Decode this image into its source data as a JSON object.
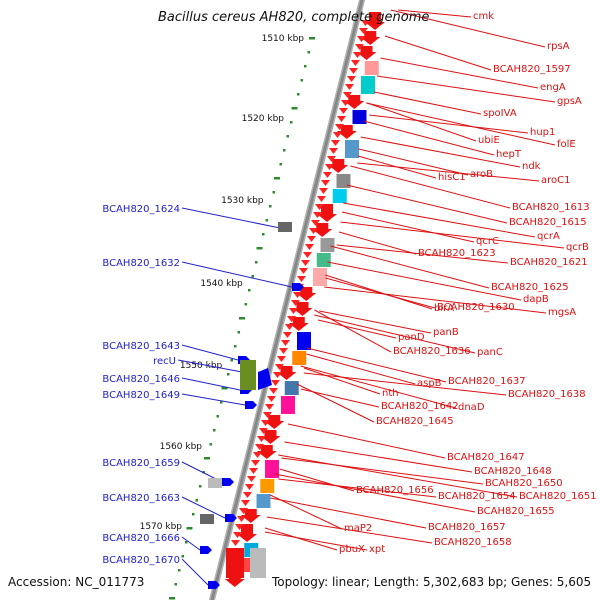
{
  "title": "Bacillus cereus AH820, complete genome",
  "accession": "Accession: NC_011773",
  "topology": "Topology: linear; Length: 5,302,683 bp; Genes: 5,605",
  "colors": {
    "forward_label": "#2222cc",
    "reverse_label": "#dd1111",
    "backbone": "#888888",
    "tick": "#2e8b2e"
  },
  "scale_labels": [
    "1510 kbp",
    "1520 kbp",
    "1530 kbp",
    "1540 kbp",
    "1550 kbp",
    "1560 kbp",
    "1570 kbp"
  ],
  "forward_genes": [
    "BCAH820_1624",
    "BCAH820_1632",
    "BCAH820_1643",
    "recU",
    "BCAH820_1646",
    "BCAH820_1649",
    "BCAH820_1659",
    "BCAH820_1663",
    "BCAH820_1666",
    "BCAH820_1670"
  ],
  "reverse_genes": [
    "cmk",
    "rpsA",
    "BCAH820_1597",
    "engA",
    "gpsA",
    "spoIVA",
    "hup1",
    "folE",
    "ubiE",
    "hepT",
    "ndk",
    "aroB",
    "hisC1",
    "aroC1",
    "BCAH820_1613",
    "BCAH820_1615",
    "qcrA",
    "qcrC",
    "qcrB",
    "BCAH820_1623",
    "BCAH820_1621",
    "BCAH820_1625",
    "dapB",
    "birA",
    "BCAH820_1630",
    "mgsA",
    "panB",
    "panD",
    "BCAH820_1636",
    "panC",
    "BCAH820_1637",
    "aspB",
    "nth",
    "BCAH820_1638",
    "BCAH820_1642",
    "dnaD",
    "BCAH820_1645",
    "BCAH820_1647",
    "BCAH820_1648",
    "BCAH820_1650",
    "BCAH820_1656",
    "BCAH820_1654",
    "BCAH820_1651",
    "BCAH820_1655",
    "maP2",
    "BCAH820_1657",
    "BCAH820_1658",
    "pbuX",
    "xpt"
  ]
}
